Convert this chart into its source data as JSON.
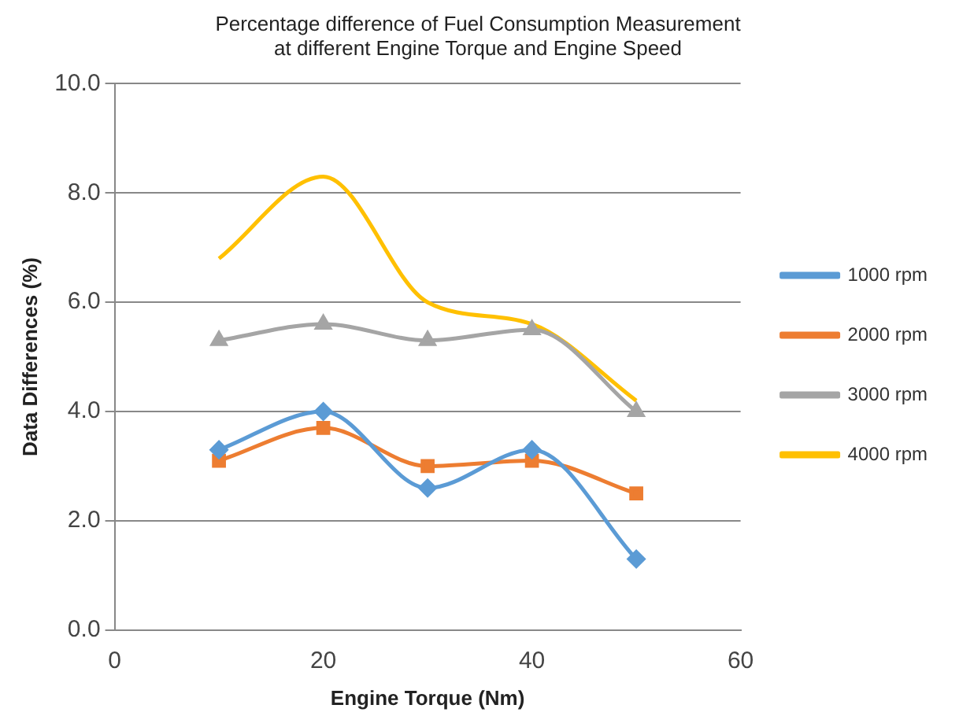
{
  "chart_data": {
    "type": "line",
    "title": "Percentage difference of Fuel Consumption Measurement\nat different Engine Torque and Engine Speed",
    "xlabel": "Engine Torque (Nm)",
    "ylabel": "Data Differences (%)",
    "x": [
      10,
      20,
      30,
      40,
      50
    ],
    "xlim": [
      0,
      60
    ],
    "xticks": [
      0,
      20,
      40,
      60
    ],
    "ylim": [
      0,
      10
    ],
    "yticks": [
      {
        "value": 0,
        "label": "0.0"
      },
      {
        "value": 2,
        "label": "2.0"
      },
      {
        "value": 4,
        "label": "4.0"
      },
      {
        "value": 6,
        "label": "6.0"
      },
      {
        "value": 8,
        "label": "8.0"
      },
      {
        "value": 10,
        "label": "10.0"
      }
    ],
    "grid": "y",
    "legend": "right",
    "series": [
      {
        "name": "1000 rpm",
        "color": "#5b9bd5",
        "marker": "diamond",
        "values": [
          3.3,
          4.0,
          2.6,
          3.3,
          1.3
        ]
      },
      {
        "name": "2000 rpm",
        "color": "#ed7d31",
        "marker": "square",
        "values": [
          3.1,
          3.7,
          3.0,
          3.1,
          2.5
        ]
      },
      {
        "name": "3000 rpm",
        "color": "#a5a5a5",
        "marker": "triangle",
        "values": [
          5.3,
          5.6,
          5.3,
          5.5,
          4.0
        ]
      },
      {
        "name": "4000 rpm",
        "color": "#ffc000",
        "marker": "none",
        "values": [
          6.8,
          8.3,
          6.0,
          5.6,
          4.2
        ]
      }
    ]
  }
}
